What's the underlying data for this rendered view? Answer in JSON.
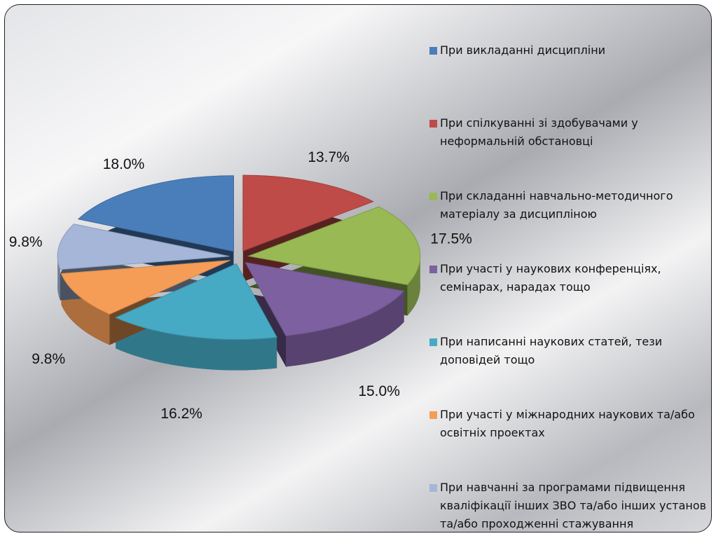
{
  "chart_data": {
    "type": "pie",
    "categories": [
      "При викладанні дисципліни",
      "При спілкуванні зі здобувачами у неформальній обстановці",
      "При складанні навчально-методичного матеріалу за дисципліною",
      "При участі у наукових конференціях, семінарах, нарадах тощо",
      "При написанні наукових статей, тези доповідей тощо",
      "При участі у міжнародних наукових та/або освітніх проектах",
      "При навчанні за програмами підвищення кваліфікації інших ЗВО та/або інших установ та/або проходженні стажування"
    ],
    "values": [
      18.0,
      13.7,
      17.5,
      15.0,
      16.2,
      9.8,
      9.8
    ],
    "value_labels": [
      "18.0%",
      "13.7%",
      "17.5%",
      "15.0%",
      "16.2%",
      "9.8%",
      "9.8%"
    ],
    "colors": [
      "#4a7ebb",
      "#be4b48",
      "#98b954",
      "#7d60a0",
      "#46aac5",
      "#f59d56",
      "#a5b6d9"
    ],
    "legend": "right"
  }
}
